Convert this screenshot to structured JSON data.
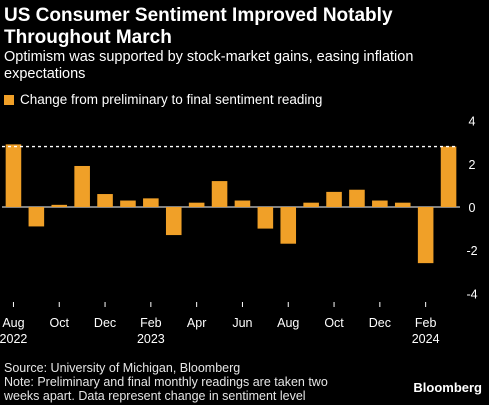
{
  "title": "US Consumer Sentiment Improved Notably Throughout March",
  "subtitle": "Optimism was supported by stock-market gains, easing inflation expectations",
  "footer": {
    "source": "Source: University of Michigan, Bloomberg",
    "note": "Note: Preliminary and final monthly readings are taken two weeks apart. Data represent change in sentiment level"
  },
  "brand": "Bloomberg",
  "chart_data": {
    "type": "bar",
    "title": "US Consumer Sentiment Improved Notably Throughout March",
    "subtitle": "Optimism was supported by stock-market gains, easing inflation expectations",
    "categories": [
      "Aug 2022",
      "Sep 2022",
      "Oct 2022",
      "Nov 2022",
      "Dec 2022",
      "Jan 2023",
      "Feb 2023",
      "Mar 2023",
      "Apr 2023",
      "May 2023",
      "Jun 2023",
      "Jul 2023",
      "Aug 2023",
      "Sep 2023",
      "Oct 2023",
      "Nov 2023",
      "Dec 2023",
      "Jan 2024",
      "Feb 2024",
      "Mar 2024"
    ],
    "series": [
      {
        "name": "Change from preliminary to final sentiment reading",
        "color": "#f0a028",
        "values": [
          2.9,
          -0.9,
          0.1,
          1.9,
          0.6,
          0.3,
          0.4,
          -1.3,
          0.2,
          1.2,
          0.3,
          -1.0,
          -1.7,
          0.2,
          0.7,
          0.8,
          0.3,
          0.2,
          -2.6,
          2.8
        ]
      }
    ],
    "reference_line": {
      "value": 2.8,
      "style": "dashed",
      "color": "#ffffff"
    },
    "x_tick_labels": [
      {
        "index": 0,
        "line1": "Aug",
        "line2": "2022"
      },
      {
        "index": 2,
        "line1": "Oct",
        "line2": ""
      },
      {
        "index": 4,
        "line1": "Dec",
        "line2": ""
      },
      {
        "index": 6,
        "line1": "Feb",
        "line2": "2023"
      },
      {
        "index": 8,
        "line1": "Apr",
        "line2": ""
      },
      {
        "index": 10,
        "line1": "Jun",
        "line2": ""
      },
      {
        "index": 12,
        "line1": "Aug",
        "line2": ""
      },
      {
        "index": 14,
        "line1": "Oct",
        "line2": ""
      },
      {
        "index": 16,
        "line1": "Dec",
        "line2": ""
      },
      {
        "index": 18,
        "line1": "Feb",
        "line2": "2024"
      }
    ],
    "y_ticks": [
      4,
      2,
      0,
      -2,
      -4
    ],
    "ylim": [
      -4.4,
      4.4
    ],
    "xlabel": "",
    "ylabel": "",
    "legend_position": "top-left",
    "grid": false
  }
}
